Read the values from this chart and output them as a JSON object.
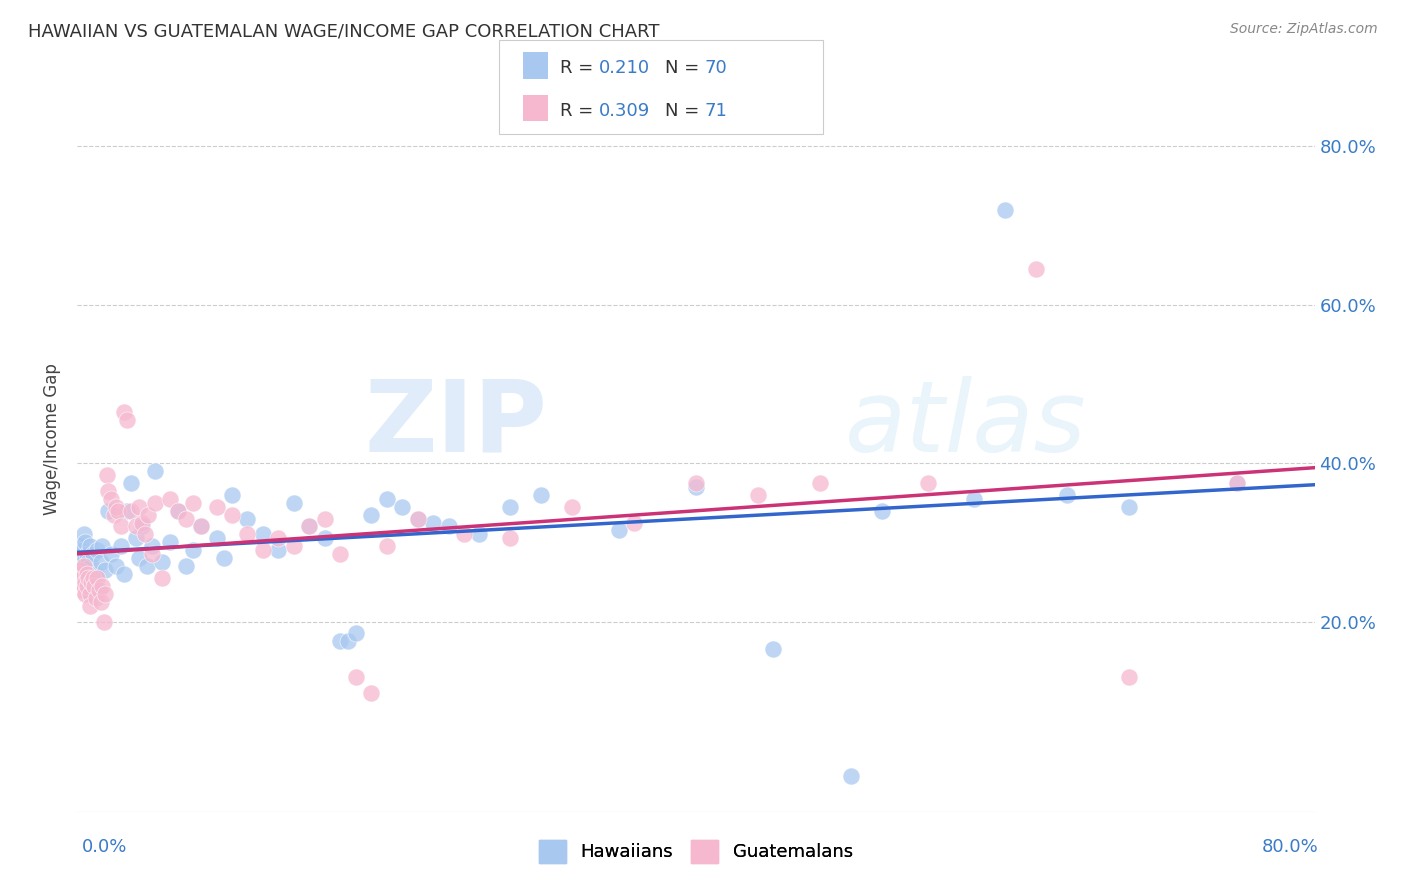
{
  "title": "HAWAIIAN VS GUATEMALAN WAGE/INCOME GAP CORRELATION CHART",
  "source": "Source: ZipAtlas.com",
  "ylabel": "Wage/Income Gap",
  "xlim": [
    0.0,
    0.8
  ],
  "ylim": [
    -0.04,
    0.9
  ],
  "ytick_values": [
    0.2,
    0.4,
    0.6,
    0.8
  ],
  "ytick_labels": [
    "20.0%",
    "40.0%",
    "60.0%",
    "80.0%"
  ],
  "background_color": "#ffffff",
  "hawaiian_color": "#a8c8f0",
  "guatemalan_color": "#f5b8cf",
  "hawaiian_line_color": "#3366cc",
  "guatemalan_line_color": "#cc3377",
  "R_hawaiian": 0.21,
  "N_hawaiian": 70,
  "R_guatemalan": 0.309,
  "N_guatemalan": 71,
  "hawaiian_points": [
    [
      0.001,
      0.285
    ],
    [
      0.002,
      0.275
    ],
    [
      0.002,
      0.295
    ],
    [
      0.003,
      0.26
    ],
    [
      0.003,
      0.29
    ],
    [
      0.004,
      0.27
    ],
    [
      0.004,
      0.31
    ],
    [
      0.005,
      0.28
    ],
    [
      0.005,
      0.3
    ],
    [
      0.006,
      0.265
    ],
    [
      0.006,
      0.285
    ],
    [
      0.007,
      0.275
    ],
    [
      0.008,
      0.295
    ],
    [
      0.009,
      0.27
    ],
    [
      0.01,
      0.285
    ],
    [
      0.012,
      0.26
    ],
    [
      0.013,
      0.29
    ],
    [
      0.015,
      0.275
    ],
    [
      0.016,
      0.295
    ],
    [
      0.018,
      0.265
    ],
    [
      0.02,
      0.34
    ],
    [
      0.022,
      0.285
    ],
    [
      0.025,
      0.27
    ],
    [
      0.028,
      0.295
    ],
    [
      0.03,
      0.26
    ],
    [
      0.032,
      0.34
    ],
    [
      0.035,
      0.375
    ],
    [
      0.038,
      0.305
    ],
    [
      0.04,
      0.28
    ],
    [
      0.042,
      0.32
    ],
    [
      0.045,
      0.27
    ],
    [
      0.048,
      0.295
    ],
    [
      0.05,
      0.39
    ],
    [
      0.055,
      0.275
    ],
    [
      0.06,
      0.3
    ],
    [
      0.065,
      0.34
    ],
    [
      0.07,
      0.27
    ],
    [
      0.075,
      0.29
    ],
    [
      0.08,
      0.32
    ],
    [
      0.09,
      0.305
    ],
    [
      0.095,
      0.28
    ],
    [
      0.1,
      0.36
    ],
    [
      0.11,
      0.33
    ],
    [
      0.12,
      0.31
    ],
    [
      0.13,
      0.29
    ],
    [
      0.14,
      0.35
    ],
    [
      0.15,
      0.32
    ],
    [
      0.16,
      0.305
    ],
    [
      0.17,
      0.175
    ],
    [
      0.175,
      0.175
    ],
    [
      0.18,
      0.185
    ],
    [
      0.19,
      0.335
    ],
    [
      0.2,
      0.355
    ],
    [
      0.21,
      0.345
    ],
    [
      0.22,
      0.33
    ],
    [
      0.23,
      0.325
    ],
    [
      0.24,
      0.32
    ],
    [
      0.26,
      0.31
    ],
    [
      0.28,
      0.345
    ],
    [
      0.3,
      0.36
    ],
    [
      0.35,
      0.315
    ],
    [
      0.4,
      0.37
    ],
    [
      0.45,
      0.165
    ],
    [
      0.5,
      0.005
    ],
    [
      0.52,
      0.34
    ],
    [
      0.58,
      0.355
    ],
    [
      0.6,
      0.72
    ],
    [
      0.64,
      0.36
    ],
    [
      0.68,
      0.345
    ],
    [
      0.75,
      0.375
    ]
  ],
  "guatemalan_points": [
    [
      0.001,
      0.26
    ],
    [
      0.002,
      0.25
    ],
    [
      0.002,
      0.265
    ],
    [
      0.003,
      0.24
    ],
    [
      0.003,
      0.255
    ],
    [
      0.004,
      0.245
    ],
    [
      0.004,
      0.27
    ],
    [
      0.005,
      0.25
    ],
    [
      0.005,
      0.235
    ],
    [
      0.006,
      0.26
    ],
    [
      0.006,
      0.245
    ],
    [
      0.007,
      0.255
    ],
    [
      0.008,
      0.235
    ],
    [
      0.008,
      0.22
    ],
    [
      0.009,
      0.25
    ],
    [
      0.01,
      0.255
    ],
    [
      0.011,
      0.245
    ],
    [
      0.012,
      0.23
    ],
    [
      0.013,
      0.255
    ],
    [
      0.014,
      0.24
    ],
    [
      0.015,
      0.225
    ],
    [
      0.016,
      0.245
    ],
    [
      0.017,
      0.2
    ],
    [
      0.018,
      0.235
    ],
    [
      0.019,
      0.385
    ],
    [
      0.02,
      0.365
    ],
    [
      0.022,
      0.355
    ],
    [
      0.024,
      0.335
    ],
    [
      0.025,
      0.345
    ],
    [
      0.026,
      0.34
    ],
    [
      0.028,
      0.32
    ],
    [
      0.03,
      0.465
    ],
    [
      0.032,
      0.455
    ],
    [
      0.035,
      0.34
    ],
    [
      0.038,
      0.32
    ],
    [
      0.04,
      0.345
    ],
    [
      0.042,
      0.325
    ],
    [
      0.044,
      0.31
    ],
    [
      0.046,
      0.335
    ],
    [
      0.048,
      0.285
    ],
    [
      0.05,
      0.35
    ],
    [
      0.055,
      0.255
    ],
    [
      0.06,
      0.355
    ],
    [
      0.065,
      0.34
    ],
    [
      0.07,
      0.33
    ],
    [
      0.075,
      0.35
    ],
    [
      0.08,
      0.32
    ],
    [
      0.09,
      0.345
    ],
    [
      0.1,
      0.335
    ],
    [
      0.11,
      0.31
    ],
    [
      0.12,
      0.29
    ],
    [
      0.13,
      0.305
    ],
    [
      0.14,
      0.295
    ],
    [
      0.15,
      0.32
    ],
    [
      0.16,
      0.33
    ],
    [
      0.17,
      0.285
    ],
    [
      0.18,
      0.13
    ],
    [
      0.19,
      0.11
    ],
    [
      0.2,
      0.295
    ],
    [
      0.22,
      0.33
    ],
    [
      0.25,
      0.31
    ],
    [
      0.28,
      0.305
    ],
    [
      0.32,
      0.345
    ],
    [
      0.36,
      0.325
    ],
    [
      0.4,
      0.375
    ],
    [
      0.44,
      0.36
    ],
    [
      0.48,
      0.375
    ],
    [
      0.55,
      0.375
    ],
    [
      0.62,
      0.645
    ],
    [
      0.68,
      0.13
    ],
    [
      0.75,
      0.375
    ]
  ]
}
